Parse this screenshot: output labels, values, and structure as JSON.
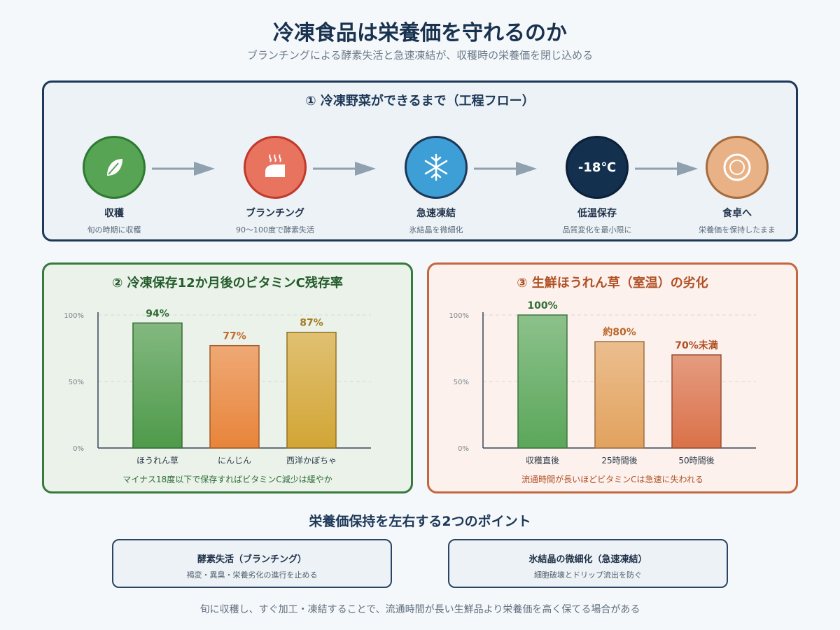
{
  "title": "冷凍食品は栄養価を守れるのか",
  "subtitle": "ブランチングによる酵素失活と急速凍結が、収穫時の栄養価を閉じ込める",
  "flow": {
    "title": "① 冷凍野菜ができるまで（工程フロー）",
    "steps": [
      {
        "label": "収穫",
        "desc": "旬の時期に収穫",
        "icon": "leaf-icon",
        "color": "#4e9a4a"
      },
      {
        "label": "ブランチング",
        "desc": "90〜100度で酵素失活",
        "icon": "steaming-pot-icon",
        "color": "#e2685a"
      },
      {
        "label": "急速凍結",
        "desc": "氷結晶を微細化",
        "icon": "snowflake-icon",
        "color": "#3e9fd6"
      },
      {
        "label": "低温保存",
        "desc": "品質変化を最小限に",
        "icon_text": "-18℃",
        "color": "#13304f"
      },
      {
        "label": "食卓へ",
        "desc": "栄養価を保持したまま",
        "icon": "plate-icon",
        "color": "#e8b286"
      }
    ]
  },
  "chart_data": [
    {
      "type": "bar",
      "title": "② 冷凍保存12か月後のビタミンC残存率",
      "categories": [
        "ほうれん草",
        "にんじん",
        "西洋かぼちゃ"
      ],
      "values": [
        94,
        77,
        87
      ],
      "value_labels": [
        "94%",
        "77%",
        "87%"
      ],
      "colors": [
        "#4e9a4a",
        "#e8843a",
        "#d2a535"
      ],
      "label_colors": [
        "#2f6d34",
        "#c46b2a",
        "#a47b1c"
      ],
      "ylim": [
        0,
        100
      ],
      "yticks": [
        "0%",
        "50%",
        "100%"
      ],
      "grid": true,
      "note": "マイナス18度以下で保存すればビタミンC減少は緩やか"
    },
    {
      "type": "bar",
      "title": "③ 生鮮ほうれん草（室温）の劣化",
      "categories": [
        "収穫直後",
        "25時間後",
        "50時間後"
      ],
      "values": [
        100,
        80,
        70
      ],
      "value_labels": [
        "100%",
        "約80%",
        "70%未満"
      ],
      "colors": [
        "#5ba75a",
        "#e2a25e",
        "#da7149"
      ],
      "label_colors": [
        "#2f6d34",
        "#b8672a",
        "#b04f24"
      ],
      "ylim": [
        0,
        100
      ],
      "yticks": [
        "0%",
        "50%",
        "100%"
      ],
      "grid": true,
      "note": "流通時間が長いほどビタミンCは急速に失われる"
    }
  ],
  "points": {
    "title": "栄養価保持を左右する2つのポイント",
    "cards": [
      {
        "title": "酵素失活（ブランチング）",
        "desc": "褐変・異臭・栄養劣化の進行を止める"
      },
      {
        "title": "氷結晶の微細化（急速凍結）",
        "desc": "細胞破壊とドリップ流出を防ぐ"
      }
    ]
  },
  "footer": "旬に収穫し、すぐ加工・凍結することで、流通時間が長い生鮮品より栄養価を高く保てる場合がある"
}
